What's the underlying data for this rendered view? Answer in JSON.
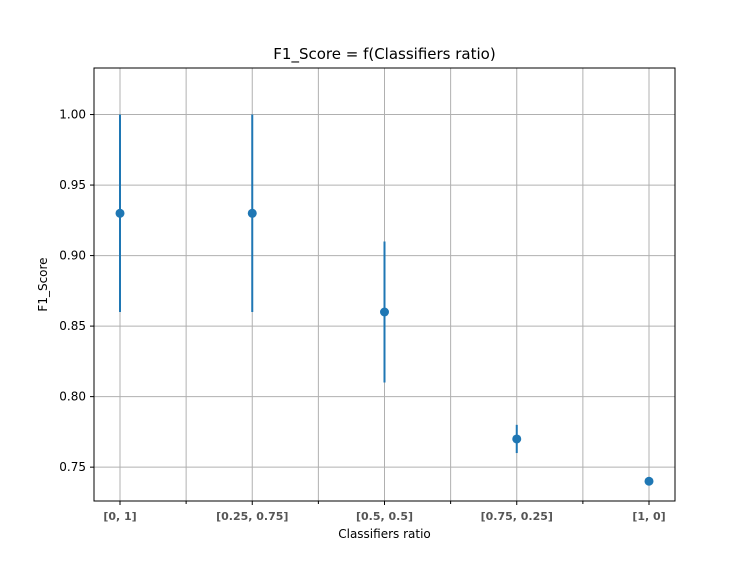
{
  "chart_data": {
    "type": "scatter",
    "title": "F1_Score = f(Classifiers ratio)",
    "xlabel": "Classifiers ratio",
    "ylabel": "F1_Score",
    "categories": [
      "[0, 1]",
      "[0.25, 0.75]",
      "[0.5, 0.5]",
      "[0.75, 0.25]",
      "[1, 0]"
    ],
    "series": [
      {
        "values": [
          0.93,
          0.93,
          0.86,
          0.77,
          0.74
        ],
        "error_low": [
          0.86,
          0.86,
          0.81,
          0.76,
          0.74
        ],
        "error_high": [
          1.0,
          1.0,
          0.91,
          0.78,
          0.74
        ]
      }
    ],
    "yticks": [
      0.75,
      0.8,
      0.85,
      0.9,
      0.95,
      1.0
    ],
    "ytick_labels": [
      "0.75",
      "0.80",
      "0.85",
      "0.90",
      "0.95",
      "1.00"
    ],
    "ylim": [
      0.726,
      1.033
    ],
    "grid": true,
    "minor_x_gridlines": true,
    "colors": {
      "series": "#1f77b4",
      "grid": "#b0b0b0",
      "axes": "#000000"
    }
  }
}
